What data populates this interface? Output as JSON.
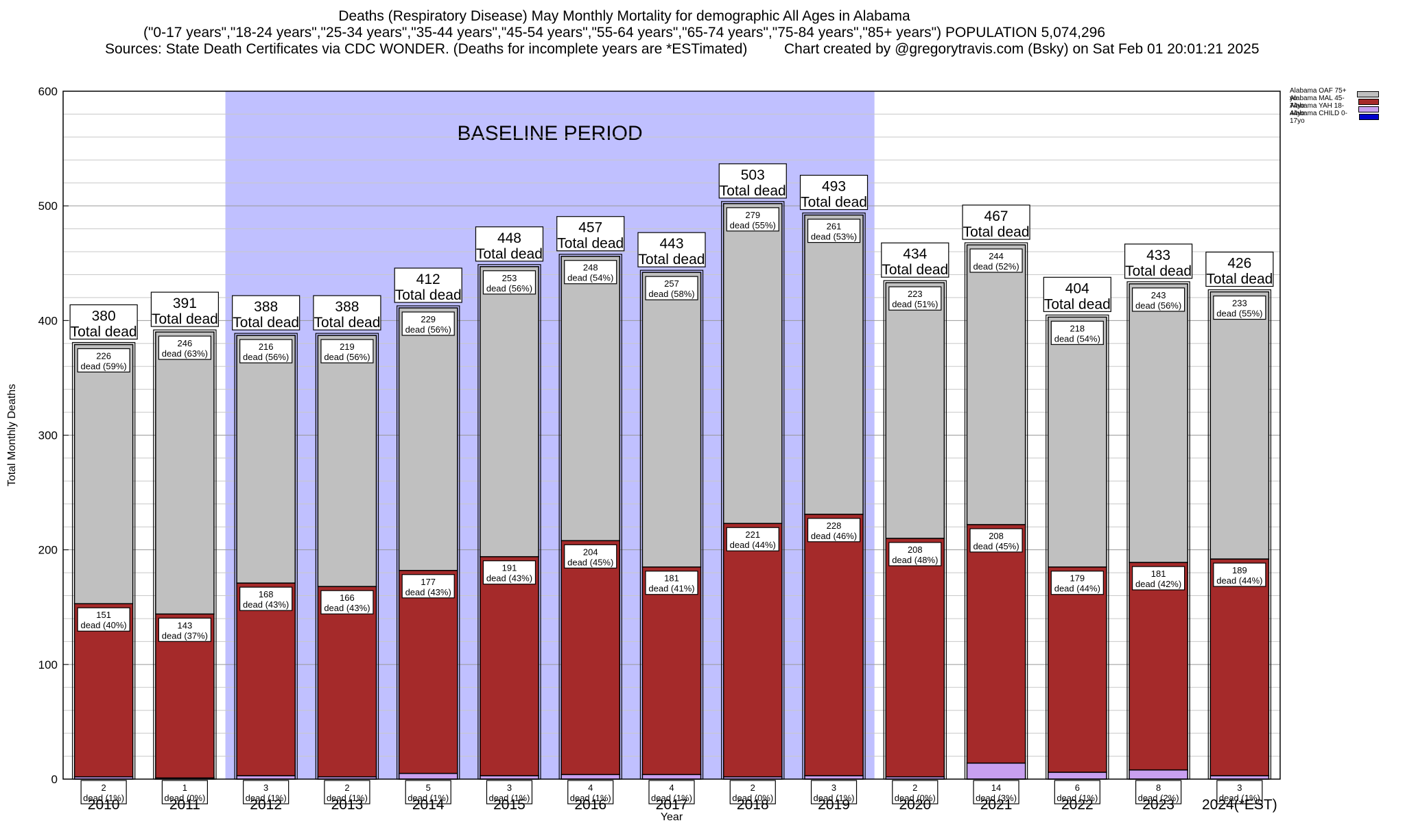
{
  "title_lines": [
    "Deaths (Respiratory Disease) May Monthly Mortality for demographic All Ages in Alabama",
    "(\"0-17 years\",\"18-24 years\",\"25-34 years\",\"35-44 years\",\"45-54 years\",\"55-64 years\",\"65-74 years\",\"75-84 years\",\"85+ years\") POPULATION 5,074,296"
  ],
  "sources_line": "Sources: State Death Certificates via CDC WONDER. (Deaths for incomplete years are *ESTimated)",
  "credit_line": "Chart created by @gregorytravis.com (Bsky) on Sat Feb 01 20:01:21 2025",
  "colors": {
    "oaf": "#c0c0c0",
    "mal": "#a52a2a",
    "yah": "#c8a0f0",
    "child": "#0000cc",
    "baseline": "#c0c0ff"
  },
  "chart_data": {
    "type": "bar",
    "stacked": true,
    "xlabel": "Year",
    "ylabel": "Total Monthly Deaths",
    "ylim": [
      0,
      600
    ],
    "yticks": [
      0,
      100,
      200,
      300,
      400,
      500,
      600
    ],
    "grid": true,
    "legend_position": "right",
    "baseline_label": "BASELINE PERIOD",
    "baseline_range": [
      "2012",
      "2019"
    ],
    "total_label": "Total dead",
    "dead_word": "dead",
    "categories": [
      "2010",
      "2011",
      "2012",
      "2013",
      "2014",
      "2015",
      "2016",
      "2017",
      "2018",
      "2019",
      "2020",
      "2021",
      "2022",
      "2023",
      "2024(*EST)"
    ],
    "totals": [
      380,
      391,
      388,
      388,
      412,
      448,
      457,
      443,
      503,
      493,
      434,
      467,
      404,
      433,
      426
    ],
    "series": [
      {
        "name": "Alabama CHILD 0-17yo",
        "key": "child",
        "values": [
          0,
          0,
          0,
          0,
          0,
          0,
          0,
          0,
          0,
          0,
          0,
          0,
          0,
          0,
          0
        ]
      },
      {
        "name": "Alabama YAH 18-44yo",
        "key": "yah",
        "values": [
          2,
          1,
          3,
          2,
          5,
          3,
          4,
          4,
          2,
          3,
          2,
          14,
          6,
          8,
          3
        ],
        "labels": [
          "(1%)",
          "(0%)",
          "(1%)",
          "(1%)",
          "(1%)",
          "(1%)",
          "(1%)",
          "(1%)",
          "(0%)",
          "(1%)",
          "(0%)",
          "(3%)",
          "(1%)",
          "(2%)",
          "(1%)"
        ]
      },
      {
        "name": "Alabama MAL 45-74yo",
        "key": "mal",
        "values": [
          151,
          143,
          168,
          166,
          177,
          191,
          204,
          181,
          221,
          228,
          208,
          208,
          179,
          181,
          189
        ],
        "labels": [
          "(40%)",
          "(37%)",
          "(43%)",
          "(43%)",
          "(43%)",
          "(43%)",
          "(45%)",
          "(41%)",
          "(44%)",
          "(46%)",
          "(48%)",
          "(45%)",
          "(44%)",
          "(42%)",
          "(44%)"
        ]
      },
      {
        "name": "Alabama OAF 75+ yo",
        "key": "oaf",
        "values": [
          226,
          246,
          216,
          219,
          229,
          253,
          248,
          257,
          279,
          261,
          223,
          244,
          218,
          243,
          233
        ],
        "labels": [
          "(59%)",
          "(63%)",
          "(56%)",
          "(56%)",
          "(56%)",
          "(56%)",
          "(54%)",
          "(58%)",
          "(55%)",
          "(53%)",
          "(51%)",
          "(52%)",
          "(54%)",
          "(56%)",
          "(55%)"
        ]
      }
    ]
  }
}
